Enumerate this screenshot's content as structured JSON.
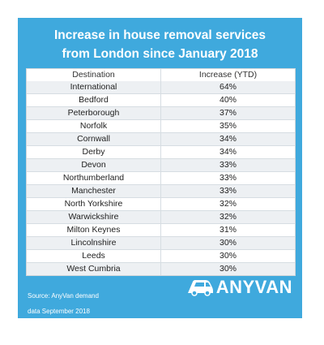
{
  "title_line1": "Increase in house removal services",
  "title_line2": "from London since January 2018",
  "table": {
    "headers": [
      "Destination",
      "Increase (YTD)"
    ],
    "rows": [
      [
        "International",
        "64%"
      ],
      [
        "Bedford",
        "40%"
      ],
      [
        "Peterborough",
        "37%"
      ],
      [
        "Norfolk",
        "35%"
      ],
      [
        "Cornwall",
        "34%"
      ],
      [
        "Derby",
        "34%"
      ],
      [
        "Devon",
        "33%"
      ],
      [
        "Northumberland",
        "33%"
      ],
      [
        "Manchester",
        "33%"
      ],
      [
        "North Yorkshire",
        "32%"
      ],
      [
        "Warwickshire",
        "32%"
      ],
      [
        "Milton Keynes",
        "31%"
      ],
      [
        "Lincolnshire",
        "30%"
      ],
      [
        "Leeds",
        "30%"
      ],
      [
        "West Cumbria",
        "30%"
      ]
    ]
  },
  "source_line": "Source: AnyVan demand",
  "data_line": "data September 2018",
  "logo": {
    "text": "ANYVAN",
    "icon": "van-icon"
  },
  "colors": {
    "background": "#3fa9dd",
    "table_alt_row": "#edf0f3"
  }
}
